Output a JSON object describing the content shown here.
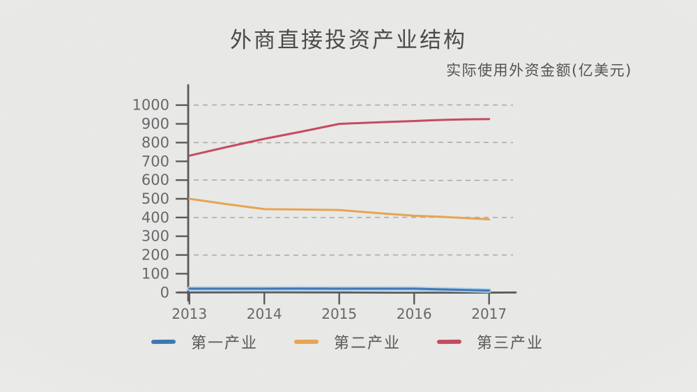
{
  "chart_data": {
    "type": "line",
    "title": "外商直接投资产业结构",
    "subtitle": "实际使用外资金额(亿美元)",
    "x": [
      "2013",
      "2014",
      "2015",
      "2016",
      "2017"
    ],
    "series": [
      {
        "name": "第一产业",
        "color": "#3e78b4",
        "halo": "#b3cfe9",
        "values": [
          20,
          20,
          20,
          20,
          10
        ]
      },
      {
        "name": "第二产业",
        "color": "#e7a451",
        "values": [
          500,
          445,
          440,
          410,
          390
        ]
      },
      {
        "name": "第三产业",
        "color": "#c64a62",
        "values": [
          730,
          820,
          900,
          915,
          925
        ]
      }
    ],
    "ylim": [
      0,
      1000
    ],
    "ytick_step": 100,
    "gridline_step": 200,
    "grid": "dashed horizontal gridlines every 200",
    "legend_position": "bottom",
    "style": "hand-drawn xkcd-like sketch on gray paper",
    "axis_color": "#5a5a58",
    "tick_label_color": "#68686a",
    "grid_color": "#acaba9"
  }
}
